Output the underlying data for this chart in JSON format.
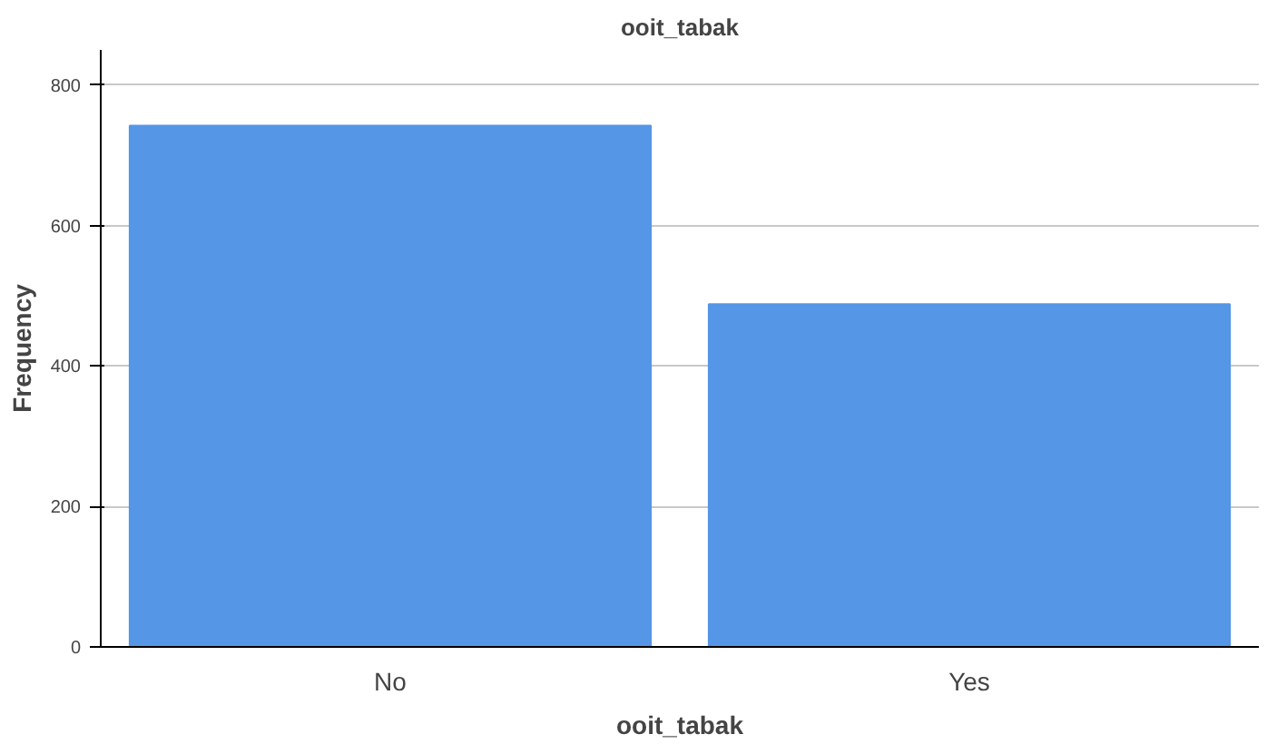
{
  "chart_data": {
    "type": "bar",
    "title": "ooit_tabak",
    "xlabel": "ooit_tabak",
    "ylabel": "Frequency",
    "categories": [
      "No",
      "Yes"
    ],
    "values": [
      742,
      488
    ],
    "color": "#5596e6",
    "ylim": [
      0,
      850
    ],
    "yticks": [
      0,
      200,
      400,
      600,
      800
    ],
    "grid": "y"
  }
}
